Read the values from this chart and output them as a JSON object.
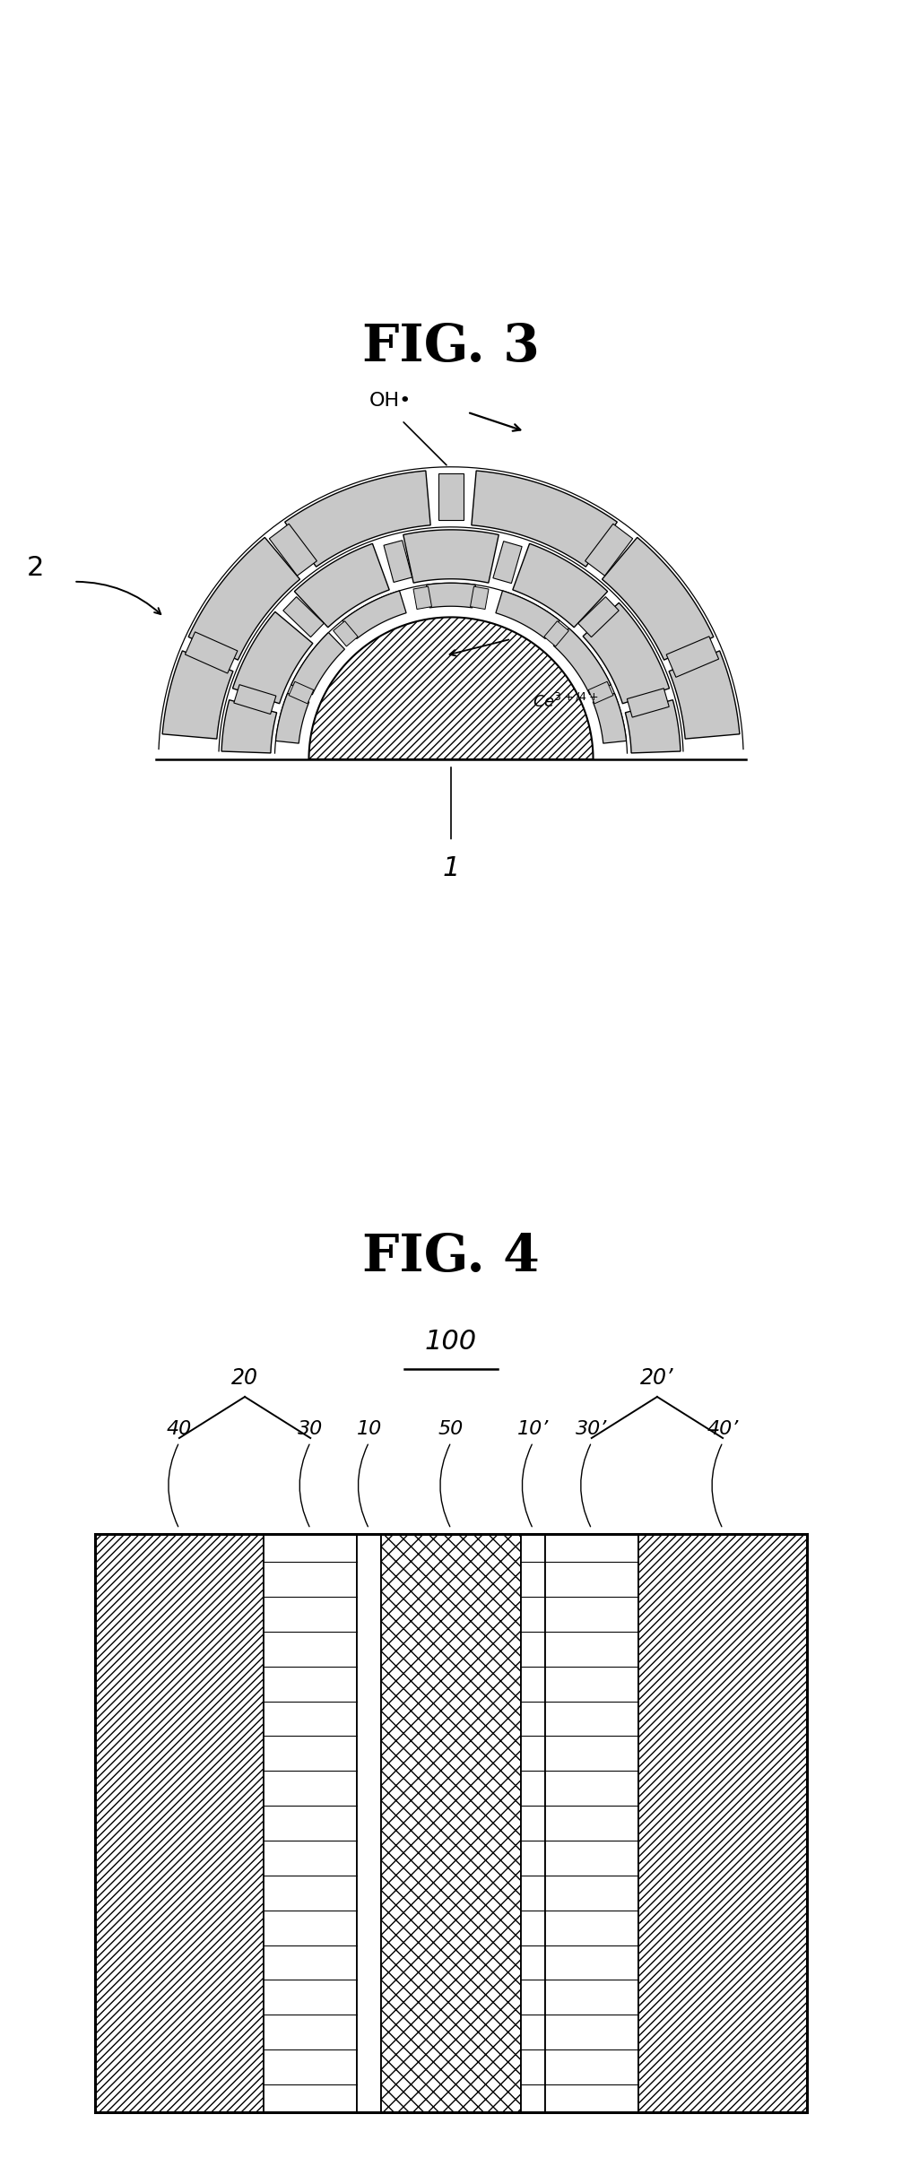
{
  "fig3_title": "FIG. 3",
  "fig4_title": "FIG. 4",
  "background_color": "#ffffff",
  "line_color": "#000000",
  "fig3_OH_label": "OH•",
  "fig3_Ce_label": "Ce$^{3+/4+}$",
  "fig3_num1": "2",
  "fig3_num2": "1",
  "fig4_num100": "100",
  "fig4_labels": [
    "40",
    "30",
    "10",
    "50",
    "10’",
    "30’",
    "40’"
  ],
  "fig4_brace20": "20",
  "fig4_brace20p": "20’",
  "title_fontsize": 42,
  "label_fontsize": 17,
  "num_fontsize": 22,
  "seg_color": "#c8c8c8"
}
